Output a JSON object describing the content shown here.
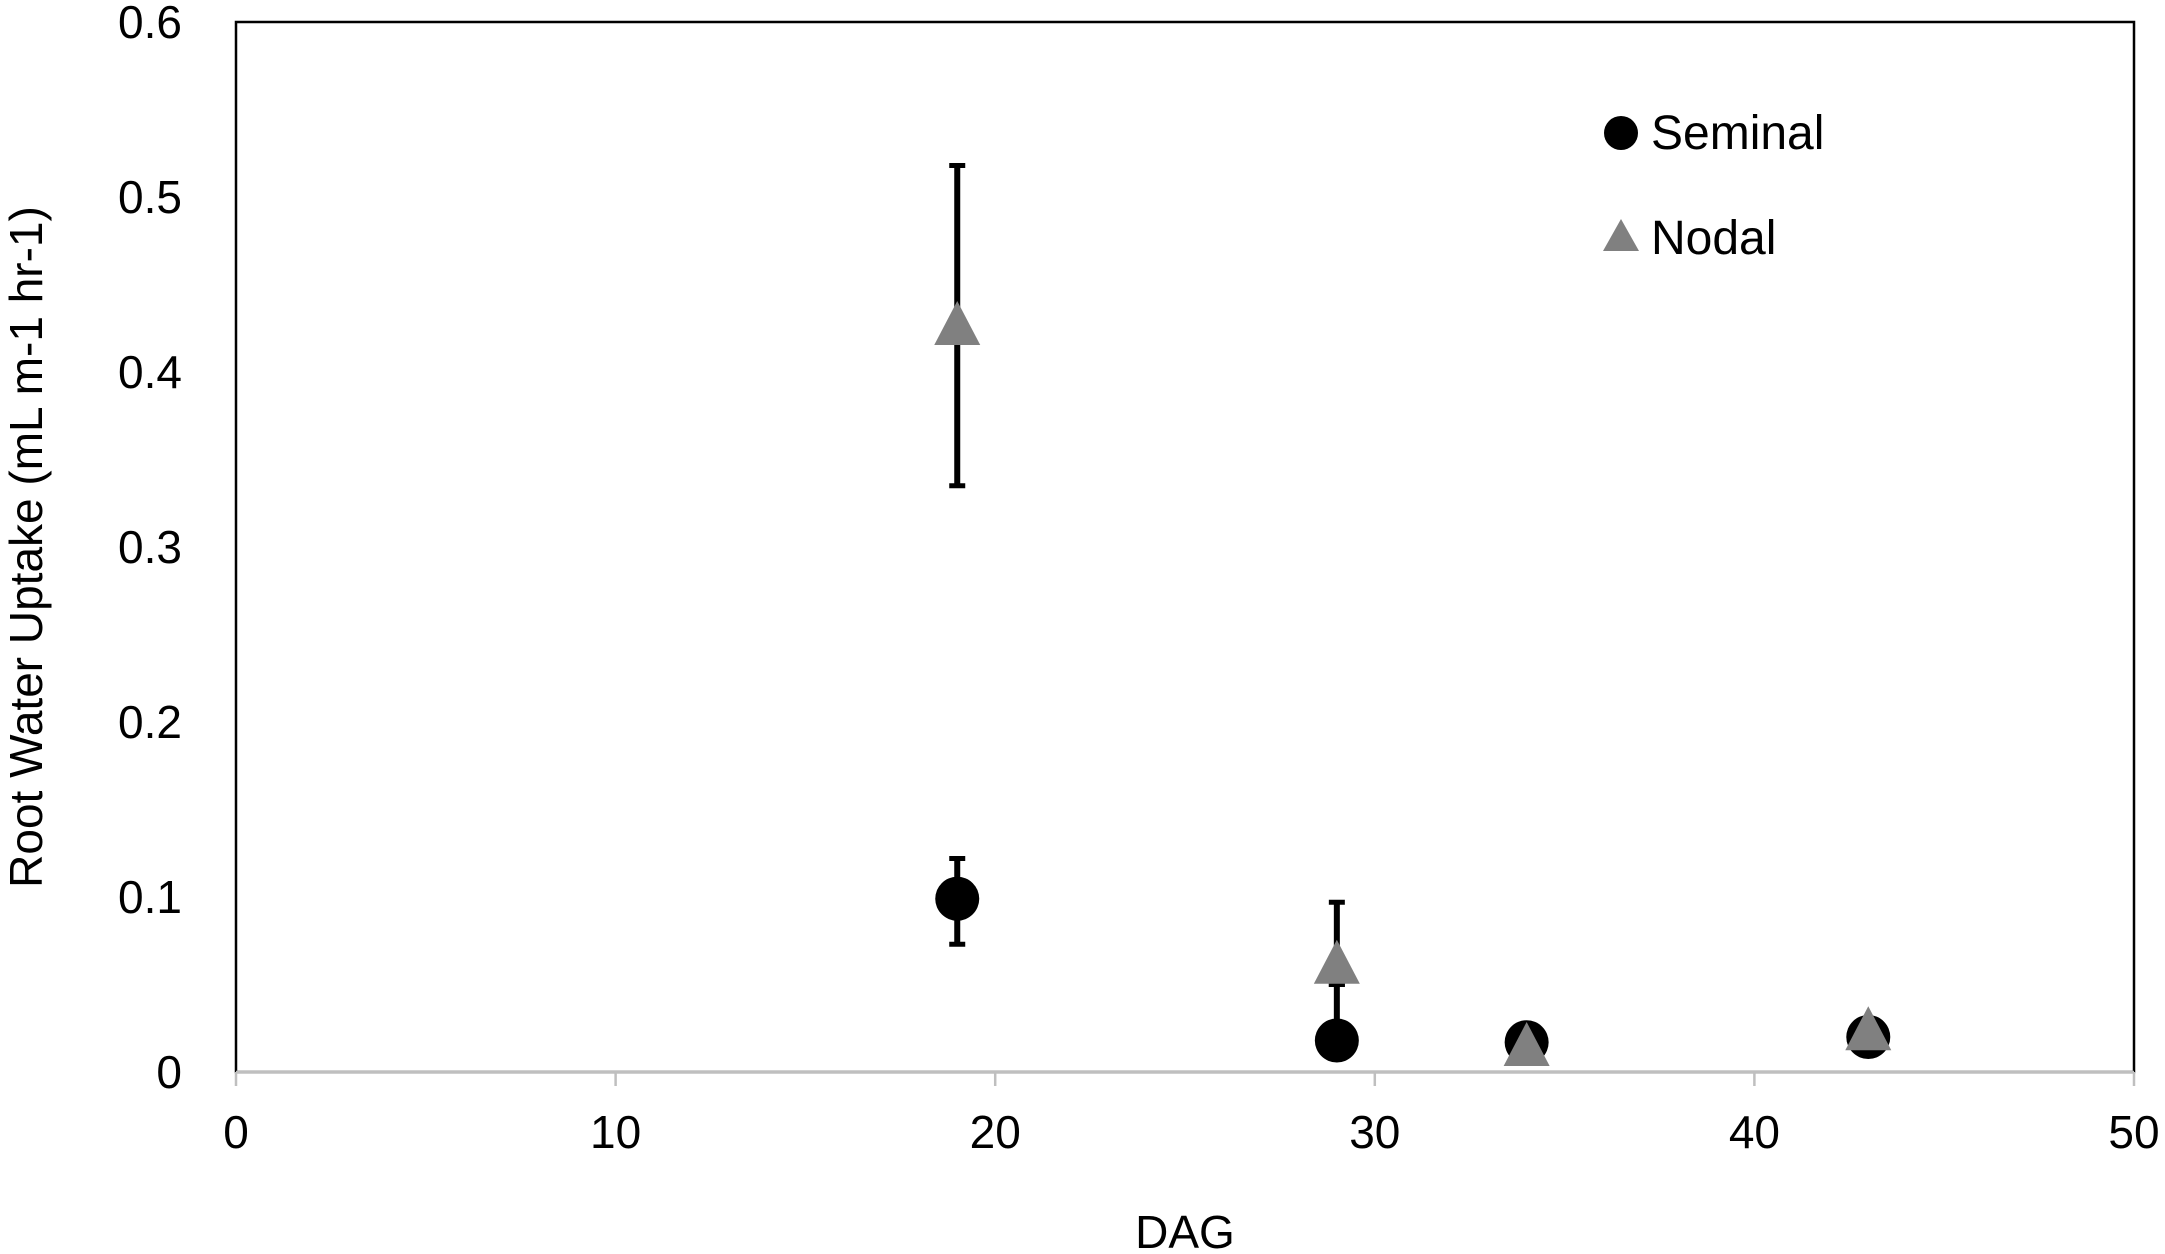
{
  "chart_data": {
    "type": "scatter",
    "title": "",
    "xlabel": "DAG",
    "ylabel": "Root Water Uptake (mL m-1 hr-1)",
    "xlim": [
      0,
      50
    ],
    "ylim": [
      0,
      0.6
    ],
    "x_ticks": [
      0,
      10,
      20,
      30,
      40,
      50
    ],
    "y_ticks": [
      0,
      0.1,
      0.2,
      0.3,
      0.4,
      0.5,
      0.6
    ],
    "x_tick_labels": [
      "0",
      "10",
      "20",
      "30",
      "40",
      "50"
    ],
    "y_tick_labels": [
      "0",
      "0.1",
      "0.2",
      "0.3",
      "0.4",
      "0.5",
      "0.6"
    ],
    "grid": false,
    "legend_position": "top-right",
    "series": [
      {
        "name": "Seminal",
        "marker": "circle",
        "color": "#000000",
        "points": [
          {
            "x": 19,
            "y": 0.099,
            "err_low": 0.073,
            "err_high": 0.122
          },
          {
            "x": 29,
            "y": 0.018,
            "err_low": 0.018,
            "err_high": 0.05
          },
          {
            "x": 34,
            "y": 0.017
          },
          {
            "x": 43,
            "y": 0.02
          }
        ]
      },
      {
        "name": "Nodal",
        "marker": "triangle",
        "color": "#808080",
        "points": [
          {
            "x": 19,
            "y": 0.425,
            "err_low": 0.335,
            "err_high": 0.518
          },
          {
            "x": 29,
            "y": 0.06,
            "err_low": 0.05,
            "err_high": 0.097
          },
          {
            "x": 34,
            "y": 0.013
          },
          {
            "x": 43,
            "y": 0.022
          }
        ]
      }
    ]
  }
}
